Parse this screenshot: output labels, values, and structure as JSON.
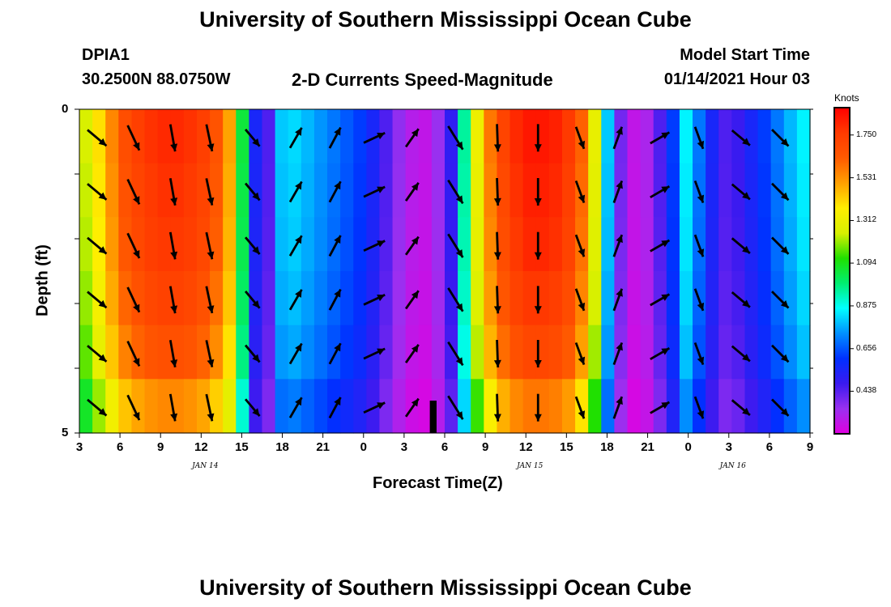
{
  "header": {
    "title": "University of Southern Mississippi Ocean Cube",
    "footer_title": "University of Southern Mississippi Ocean Cube",
    "station": "DPIA1",
    "coords": "30.2500N 88.0750W",
    "subtitle": "2-D Currents Speed-Magnitude",
    "model_label": "Model Start Time",
    "model_time": "01/14/2021 Hour 03"
  },
  "colors": {
    "scale": [
      "#e000e0",
      "#9a30f0",
      "#3a1af0",
      "#0030ff",
      "#0090ff",
      "#00ffff",
      "#00ee70",
      "#20e000",
      "#d8f000",
      "#ffee00",
      "#ffa000",
      "#ff5a00",
      "#ff3a00",
      "#ff0000"
    ],
    "arrow": "#000000"
  },
  "chart_data": {
    "type": "heatmap",
    "xlabel": "Forecast Time(Z)",
    "ylabel": "Depth (ft)",
    "x_ticks": [
      "3",
      "6",
      "9",
      "12",
      "15",
      "18",
      "21",
      "0",
      "3",
      "6",
      "9",
      "12",
      "15",
      "18",
      "21",
      "0",
      "3",
      "6",
      "9"
    ],
    "y_ticks": [
      "0",
      "5"
    ],
    "date_labels": [
      {
        "label": "JAN 14",
        "tick_index": 3
      },
      {
        "label": "JAN 15",
        "tick_index": 11
      },
      {
        "label": "JAN 16",
        "tick_index": 16
      }
    ],
    "depth_range": [
      0,
      5
    ],
    "time_range_hours": [
      3,
      57
    ],
    "colorbar": {
      "unit": "Knots",
      "min": 0.22,
      "max": 1.89,
      "ticks": [
        "1.750",
        "1.531",
        "1.312",
        "1.094",
        "0.875",
        "0.656",
        "0.438"
      ]
    },
    "speed_profile_hourly": [
      1.25,
      1.4,
      1.55,
      1.68,
      1.74,
      1.78,
      1.8,
      1.8,
      1.78,
      1.74,
      1.66,
      1.5,
      1.05,
      0.55,
      0.45,
      0.8,
      0.82,
      0.78,
      0.74,
      0.7,
      0.66,
      0.62,
      0.55,
      0.45,
      0.36,
      0.3,
      0.28,
      0.35,
      0.5,
      0.95,
      1.32,
      1.58,
      1.72,
      1.8,
      1.84,
      1.84,
      1.82,
      1.76,
      1.62,
      1.3,
      0.8,
      0.4,
      0.28,
      0.32,
      0.45,
      0.62,
      0.85,
      0.7,
      0.55,
      0.45,
      0.48,
      0.55,
      0.62,
      0.7,
      0.78,
      0.85
    ],
    "depth_factors": [
      1.0,
      0.99,
      0.98,
      0.96,
      0.93,
      0.86
    ],
    "arrows": [
      {
        "hour": 4.3,
        "angle_deg": 130,
        "length": 0.9
      },
      {
        "hour": 7.0,
        "angle_deg": 155,
        "length": 1.0
      },
      {
        "hour": 9.9,
        "angle_deg": 170,
        "length": 1.0
      },
      {
        "hour": 12.6,
        "angle_deg": 168,
        "length": 1.0
      },
      {
        "hour": 15.8,
        "angle_deg": 140,
        "length": 0.8
      },
      {
        "hour": 19.0,
        "angle_deg": 30,
        "length": 0.85
      },
      {
        "hour": 21.9,
        "angle_deg": 28,
        "length": 0.85
      },
      {
        "hour": 24.8,
        "angle_deg": 65,
        "length": 0.85
      },
      {
        "hour": 27.6,
        "angle_deg": 35,
        "length": 0.8
      },
      {
        "hour": 30.8,
        "angle_deg": 148,
        "length": 1.0
      },
      {
        "hour": 33.9,
        "angle_deg": 178,
        "length": 1.0
      },
      {
        "hour": 36.9,
        "angle_deg": 180,
        "length": 1.0
      },
      {
        "hour": 40.0,
        "angle_deg": 160,
        "length": 0.85
      },
      {
        "hour": 42.8,
        "angle_deg": 20,
        "length": 0.85
      },
      {
        "hour": 45.9,
        "angle_deg": 60,
        "length": 0.8
      },
      {
        "hour": 48.8,
        "angle_deg": 160,
        "length": 0.85
      },
      {
        "hour": 51.9,
        "angle_deg": 130,
        "length": 0.85
      },
      {
        "hour": 54.8,
        "angle_deg": 135,
        "length": 0.85
      }
    ],
    "black_bar": {
      "hour_start": 28.9,
      "hour_end": 29.4,
      "depth_start": 4.5,
      "depth_end": 5.0
    }
  }
}
